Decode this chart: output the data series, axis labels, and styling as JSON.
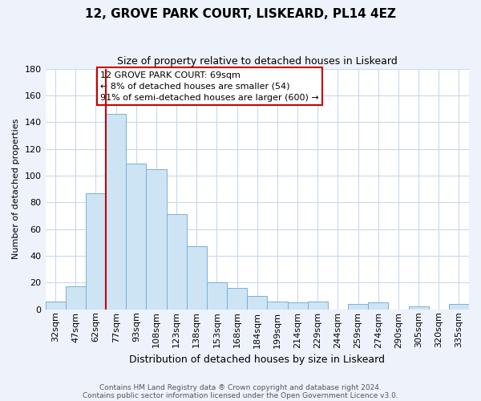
{
  "title": "12, GROVE PARK COURT, LISKEARD, PL14 4EZ",
  "subtitle": "Size of property relative to detached houses in Liskeard",
  "xlabel": "Distribution of detached houses by size in Liskeard",
  "ylabel": "Number of detached properties",
  "bar_labels": [
    "32sqm",
    "47sqm",
    "62sqm",
    "77sqm",
    "93sqm",
    "108sqm",
    "123sqm",
    "138sqm",
    "153sqm",
    "168sqm",
    "184sqm",
    "199sqm",
    "214sqm",
    "229sqm",
    "244sqm",
    "259sqm",
    "274sqm",
    "290sqm",
    "305sqm",
    "320sqm",
    "335sqm"
  ],
  "bar_values": [
    6,
    17,
    87,
    146,
    109,
    105,
    71,
    47,
    20,
    16,
    10,
    6,
    5,
    6,
    0,
    4,
    5,
    0,
    2,
    0,
    4
  ],
  "bar_color": "#cde4f5",
  "bar_edge_color": "#7bafd4",
  "ylim": [
    0,
    180
  ],
  "yticks": [
    0,
    20,
    40,
    60,
    80,
    100,
    120,
    140,
    160,
    180
  ],
  "vline_x": 2.5,
  "vline_color": "#cc0000",
  "box_text_line1": "12 GROVE PARK COURT: 69sqm",
  "box_text_line2": "← 8% of detached houses are smaller (54)",
  "box_text_line3": "91% of semi-detached houses are larger (600) →",
  "box_facecolor": "white",
  "box_edgecolor": "#cc0000",
  "footnote1": "Contains HM Land Registry data ® Crown copyright and database right 2024.",
  "footnote2": "Contains public sector information licensed under the Open Government Licence v3.0.",
  "fig_bg_color": "#eef2fb",
  "plot_bg_color": "white",
  "grid_color": "#c8d8ee",
  "title_fontsize": 11,
  "subtitle_fontsize": 9,
  "ylabel_fontsize": 8,
  "xlabel_fontsize": 9,
  "tick_fontsize": 8,
  "annot_fontsize": 8,
  "footnote_fontsize": 6.5
}
